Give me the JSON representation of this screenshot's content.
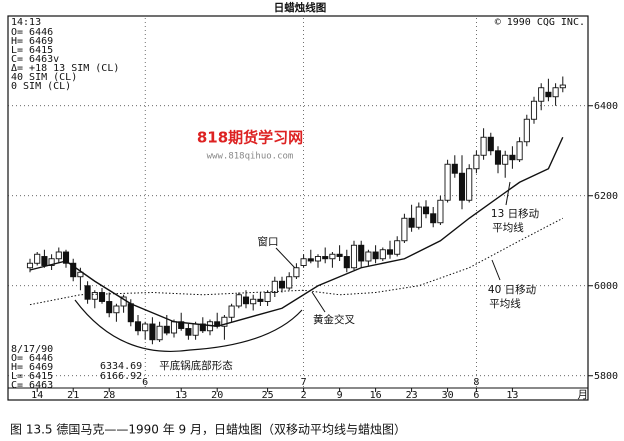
{
  "chart_data": {
    "type": "candlestick",
    "title": "日蜡烛线图",
    "time_label": "14:13",
    "copyright": "© 1990 CQG INC.",
    "info_lines": [
      "O= 6446",
      "H= 6469",
      "L= 6415",
      "C= 6463v",
      "Δ= +18  13 SIM (CL)",
      "       40 SIM (CL)",
      "        0 SIM (CL)"
    ],
    "footer_lines": [
      "8/17/90",
      "O=  6446",
      "H=  6469",
      "L=  6415",
      "C=  6463"
    ],
    "ma_readings": [
      "6334.69",
      "6166.92"
    ],
    "annotations": {
      "window": "窗口",
      "golden_cross": "黄金交叉",
      "pan_bottom": "平底锅底部形态",
      "ma13": [
        "13 日移动",
        "平均线"
      ],
      "ma40": [
        "40 日移动",
        "平均线"
      ]
    },
    "watermark": [
      "818期货学习网",
      "www.818qihuo.com"
    ],
    "caption": "图 13.5   德国马克——1990 年 9 月，日蜡烛图（双移动平均线与蜡烛图）",
    "x_unit": "月",
    "ylim": [
      5795,
      6595
    ],
    "yticks": [
      5800,
      6000,
      6200,
      6400
    ],
    "xticks": [
      {
        "value": 1,
        "label": "14"
      },
      {
        "value": 6,
        "label": "21"
      },
      {
        "value": 11,
        "label": "28"
      },
      {
        "value": 21,
        "label": "13"
      },
      {
        "value": 26,
        "label": "20"
      },
      {
        "value": 33,
        "label": "25"
      },
      {
        "value": 38,
        "label": "2"
      },
      {
        "value": 43,
        "label": "9"
      },
      {
        "value": 48,
        "label": "16"
      },
      {
        "value": 53,
        "label": "23"
      },
      {
        "value": 58,
        "label": "30"
      },
      {
        "value": 62,
        "label": "6"
      },
      {
        "value": 67,
        "label": "13"
      }
    ],
    "month_ticks": [
      {
        "value": 16,
        "label": "6"
      },
      {
        "value": 38,
        "label": "7"
      },
      {
        "value": 62,
        "label": "8"
      }
    ],
    "grid": true,
    "color": "#111111",
    "candles": {
      "open": [
        6040,
        6050,
        6065,
        6045,
        6060,
        6075,
        6050,
        6020,
        6000,
        5970,
        5985,
        5965,
        5940,
        5955,
        5960,
        5920,
        5900,
        5915,
        5880,
        5910,
        5895,
        5920,
        5905,
        5890,
        5915,
        5900,
        5920,
        5910,
        5930,
        5955,
        5975,
        5960,
        5970,
        5965,
        5985,
        6010,
        5995,
        6020,
        6045,
        6060,
        6055,
        6065,
        6060,
        6070,
        6065,
        6040,
        6090,
        6055,
        6075,
        6060,
        6080,
        6070,
        6100,
        6150,
        6130,
        6175,
        6160,
        6140,
        6190,
        6270,
        6250,
        6190,
        6260,
        6290,
        6330,
        6300,
        6270,
        6290,
        6280,
        6320,
        6370,
        6410,
        6430,
        6420,
        6440
      ],
      "high": [
        6060,
        6075,
        6080,
        6070,
        6085,
        6080,
        6060,
        6040,
        6010,
        5990,
        5995,
        5985,
        5960,
        5980,
        5970,
        5935,
        5920,
        5930,
        5920,
        5935,
        5925,
        5940,
        5915,
        5920,
        5930,
        5925,
        5940,
        5935,
        5960,
        5985,
        5990,
        5980,
        5985,
        5990,
        6020,
        6020,
        6030,
        6050,
        6070,
        6080,
        6070,
        6085,
        6075,
        6090,
        6080,
        6100,
        6100,
        6080,
        6090,
        6085,
        6100,
        6110,
        6160,
        6180,
        6185,
        6190,
        6175,
        6200,
        6280,
        6290,
        6290,
        6270,
        6300,
        6350,
        6340,
        6310,
        6300,
        6310,
        6330,
        6380,
        6420,
        6450,
        6460,
        6450,
        6465
      ],
      "low": [
        6030,
        6045,
        6040,
        6035,
        6050,
        6040,
        6010,
        5990,
        5960,
        5950,
        5960,
        5930,
        5920,
        5940,
        5910,
        5890,
        5880,
        5870,
        5875,
        5890,
        5885,
        5900,
        5880,
        5880,
        5895,
        5890,
        5905,
        5880,
        5920,
        5950,
        5950,
        5945,
        5955,
        5955,
        5975,
        5985,
        5990,
        6015,
        6040,
        6050,
        6040,
        6050,
        6040,
        6055,
        6030,
        6035,
        6040,
        6045,
        6050,
        6055,
        6060,
        6065,
        6095,
        6120,
        6125,
        6150,
        6130,
        6135,
        6185,
        6240,
        6170,
        6185,
        6250,
        6280,
        6290,
        6250,
        6240,
        6260,
        6275,
        6310,
        6360,
        6390,
        6410,
        6400,
        6430
      ],
      "close": [
        6050,
        6070,
        6045,
        6060,
        6075,
        6050,
        6020,
        6030,
        5970,
        5985,
        5965,
        5940,
        5955,
        5975,
        5920,
        5900,
        5915,
        5880,
        5910,
        5895,
        5920,
        5905,
        5890,
        5915,
        5900,
        5920,
        5910,
        5930,
        5955,
        5980,
        5960,
        5970,
        5965,
        5985,
        6010,
        5995,
        6020,
        6040,
        6060,
        6055,
        6065,
        6060,
        6070,
        6065,
        6040,
        6090,
        6055,
        6075,
        6060,
        6080,
        6070,
        6100,
        6150,
        6130,
        6175,
        6160,
        6140,
        6190,
        6270,
        6250,
        6190,
        6260,
        6290,
        6330,
        6300,
        6270,
        6290,
        6280,
        6320,
        6370,
        6410,
        6440,
        6420,
        6440,
        6446
      ]
    },
    "ma13": {
      "x": [
        0,
        5,
        9,
        14,
        20,
        26,
        35,
        40,
        46,
        52,
        57,
        61,
        68,
        72,
        74
      ],
      "values": [
        6035,
        6055,
        6010,
        5960,
        5920,
        5910,
        5950,
        6000,
        6040,
        6060,
        6100,
        6150,
        6230,
        6260,
        6330
      ]
    },
    "ma40": {
      "x": [
        0,
        7,
        17,
        24,
        38,
        43,
        48,
        54,
        61,
        68,
        74
      ],
      "values": [
        5958,
        5980,
        5985,
        5980,
        5990,
        5980,
        5985,
        6000,
        6040,
        6100,
        6150
      ]
    }
  }
}
